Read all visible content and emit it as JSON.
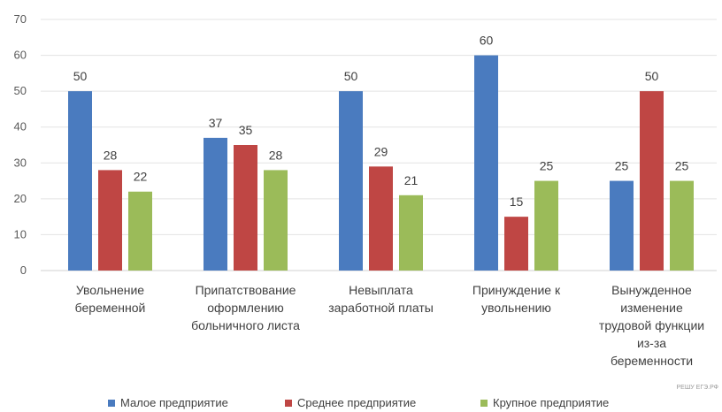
{
  "chart_data": {
    "type": "bar",
    "categories": [
      [
        "Увольнение",
        "беременной"
      ],
      [
        "Припатствование",
        "оформлению",
        "больничного листа"
      ],
      [
        "Невыплата",
        "заработной платы"
      ],
      [
        "Принуждение к",
        "увольнению"
      ],
      [
        "Вынужденное",
        "изменение",
        "трудовой функции",
        "из-за",
        "беременности"
      ]
    ],
    "series": [
      {
        "name": "Малое предприятие",
        "color": "#4a7bbf",
        "values": [
          50,
          37,
          50,
          60,
          25
        ]
      },
      {
        "name": "Среднее предприятие",
        "color": "#bf4644",
        "values": [
          28,
          35,
          29,
          15,
          50
        ]
      },
      {
        "name": "Крупное предприятие",
        "color": "#9bbb59",
        "values": [
          22,
          28,
          21,
          25,
          25
        ]
      }
    ],
    "ylim": [
      0,
      70
    ],
    "yticks": [
      0,
      10,
      20,
      30,
      40,
      50,
      60,
      70
    ],
    "grid": true,
    "legend": "bottom",
    "title": "",
    "xlabel": "",
    "ylabel": ""
  },
  "watermark": "РЕШУ ЕГЭ.РФ"
}
